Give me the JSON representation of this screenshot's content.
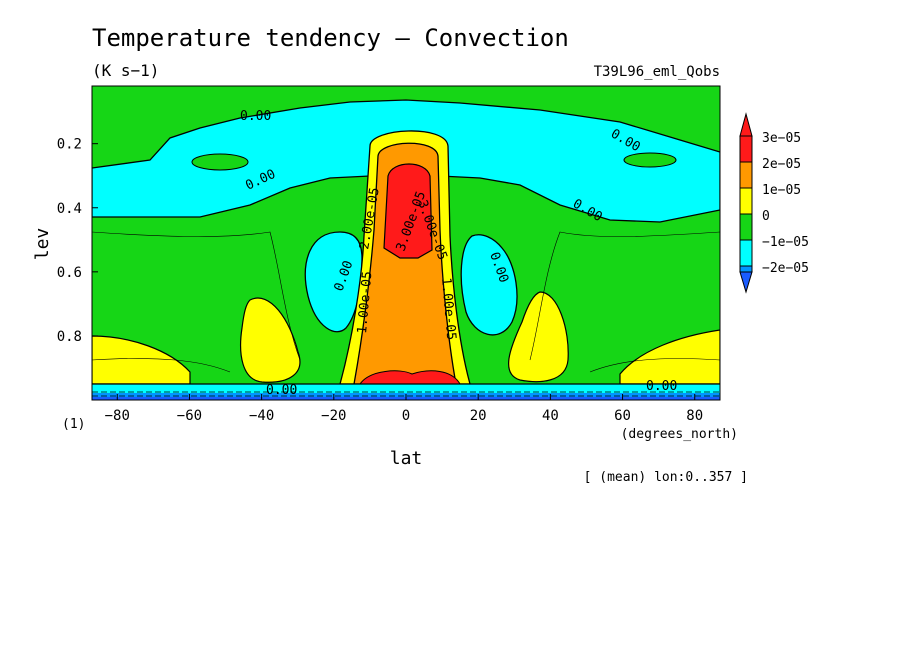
{
  "chart_data": {
    "type": "contour",
    "title": "Temperature tendency — Convection",
    "units": "(K s−1)",
    "run_label": "T39L96_eml_Qobs",
    "xlabel": "lat",
    "xunits": "(degrees_north)",
    "ylabel": "lev",
    "yunits": "(1)",
    "footnote": "[ (mean) lon:0..357 ]",
    "xlim": [
      -87,
      87
    ],
    "ylim": [
      1.0,
      0.02
    ],
    "xticks": [
      -80,
      -60,
      -40,
      -20,
      0,
      20,
      40,
      60,
      80
    ],
    "yticks": [
      0.2,
      0.4,
      0.6,
      0.8
    ],
    "colorbar": {
      "levels": [
        "3e−05",
        "2e−05",
        "1e−05",
        "0",
        "−1e−05",
        "−2e−05"
      ],
      "colors": [
        "#ff1a1a",
        "#ff9900",
        "#ffff00",
        "#16d616",
        "#00ffff",
        "#0095ff",
        "#1a5cff"
      ]
    },
    "contour_labels": [
      "0.00",
      "0.00",
      "0.00",
      "0.00",
      "0.00",
      "0.00",
      "0.00",
      "0.00",
      "1.00e-05",
      "1.00e-05",
      "2.00e-05",
      "3.00e-05",
      "3.00e-05"
    ],
    "grid": false
  }
}
